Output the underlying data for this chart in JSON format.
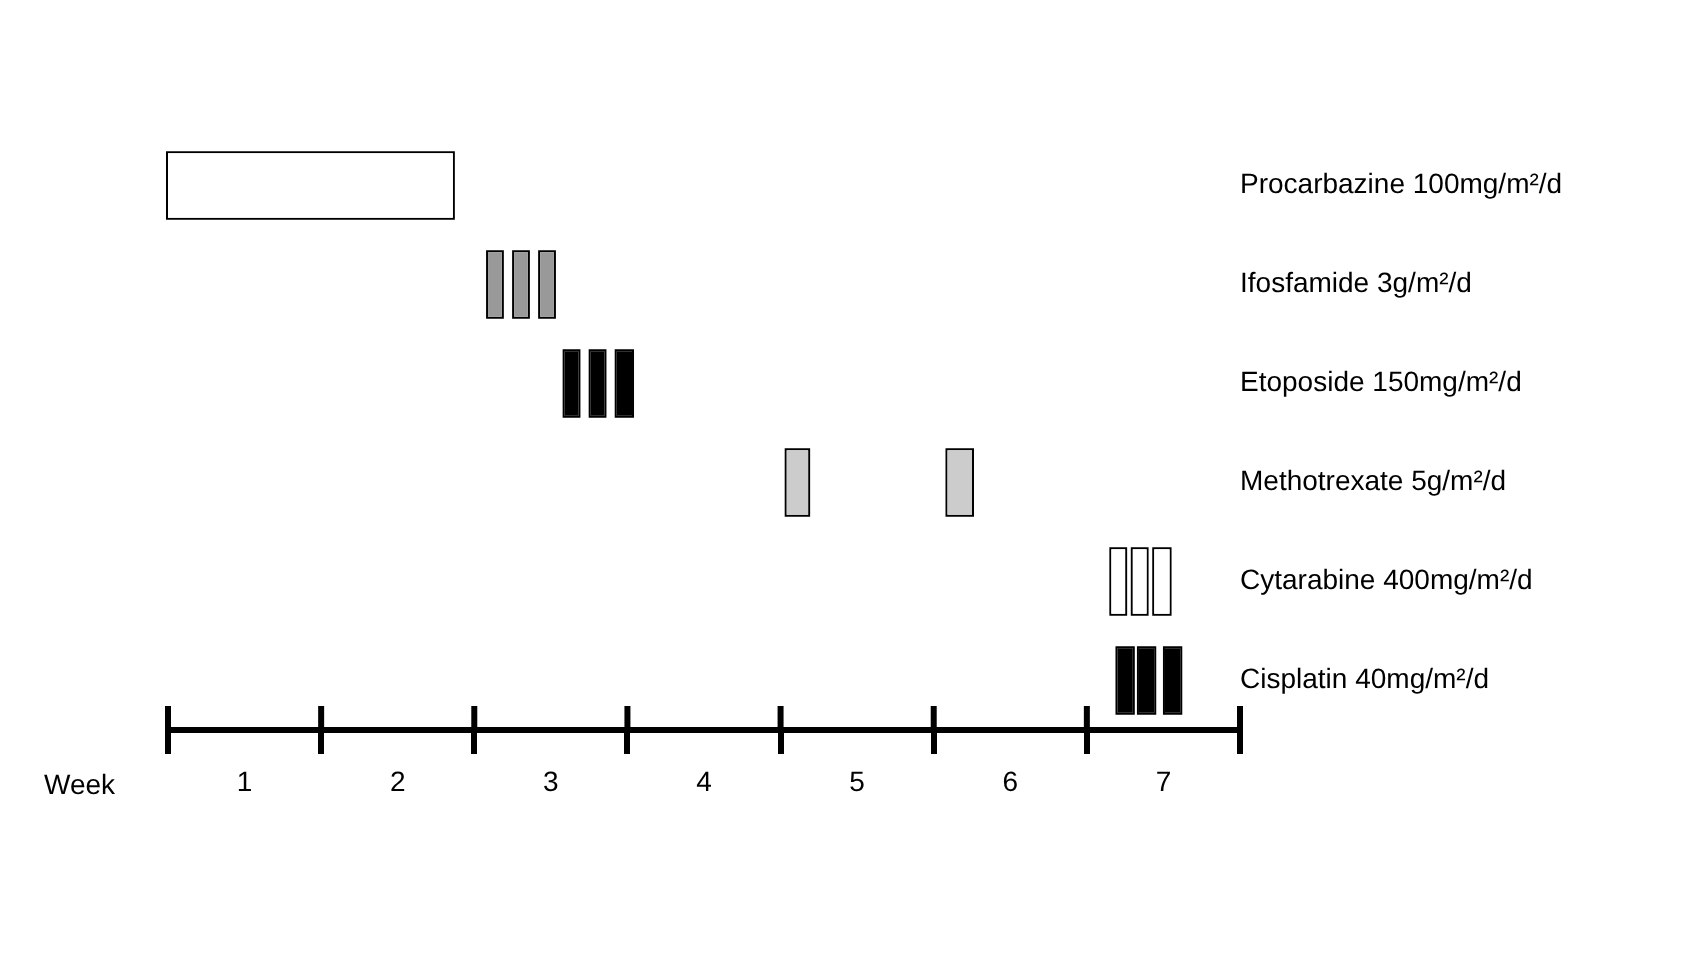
{
  "chart_data": {
    "type": "bar",
    "orientation": "horizontal",
    "xlabel": "Week",
    "categories": [
      "Procarbazine 100mg/m²/d",
      "Ifosfamide 3g/m²/d",
      "Etoposide 150mg/m²/d",
      "Methotrexate 5g/m²/d",
      "Cytarabine 400mg/m²/d",
      "Cisplatin 40mg/m²/d"
    ],
    "xlim": [
      0.5,
      7.5
    ],
    "xticks": [
      {
        "value": 0.5,
        "label": null
      },
      1,
      {
        "value": 1.5,
        "label": null
      },
      2,
      {
        "value": 2.5,
        "label": null
      },
      3,
      {
        "value": 3.5,
        "label": null
      },
      4,
      {
        "value": 4.5,
        "label": null
      },
      5,
      {
        "value": 5.5,
        "label": null
      },
      6,
      {
        "value": 6.5,
        "label": null
      },
      7,
      {
        "value": 7.5,
        "label": null
      }
    ],
    "grid": false,
    "legend": false,
    "series": [
      {
        "base": [
          0.5,
          2.59,
          3.09,
          4.54,
          6.66,
          6.7
        ],
        "values": [
          1.86,
          0.09,
          0.09,
          0.14,
          0.09,
          0.1
        ],
        "colors": [
          "#ffffff",
          "#999999",
          "#000000",
          "#cccccc",
          "#ffffff",
          "#000000"
        ]
      },
      {
        "base": [
          null,
          2.76,
          3.26,
          5.59,
          6.8,
          6.84
        ],
        "values": [
          null,
          0.09,
          0.09,
          0.16,
          0.09,
          0.1
        ],
        "colors": [
          "#ffffff",
          "#999999",
          "#000000",
          "#cccccc",
          "#ffffff",
          "#000000"
        ]
      },
      {
        "base": [
          null,
          2.93,
          3.43,
          null,
          6.94,
          7.01
        ],
        "values": [
          null,
          0.09,
          0.1,
          null,
          0.1,
          0.1
        ],
        "colors": [
          "#ffffff",
          "#999999",
          "#000000",
          "#cccccc",
          "#ffffff",
          "#000000"
        ]
      }
    ]
  }
}
